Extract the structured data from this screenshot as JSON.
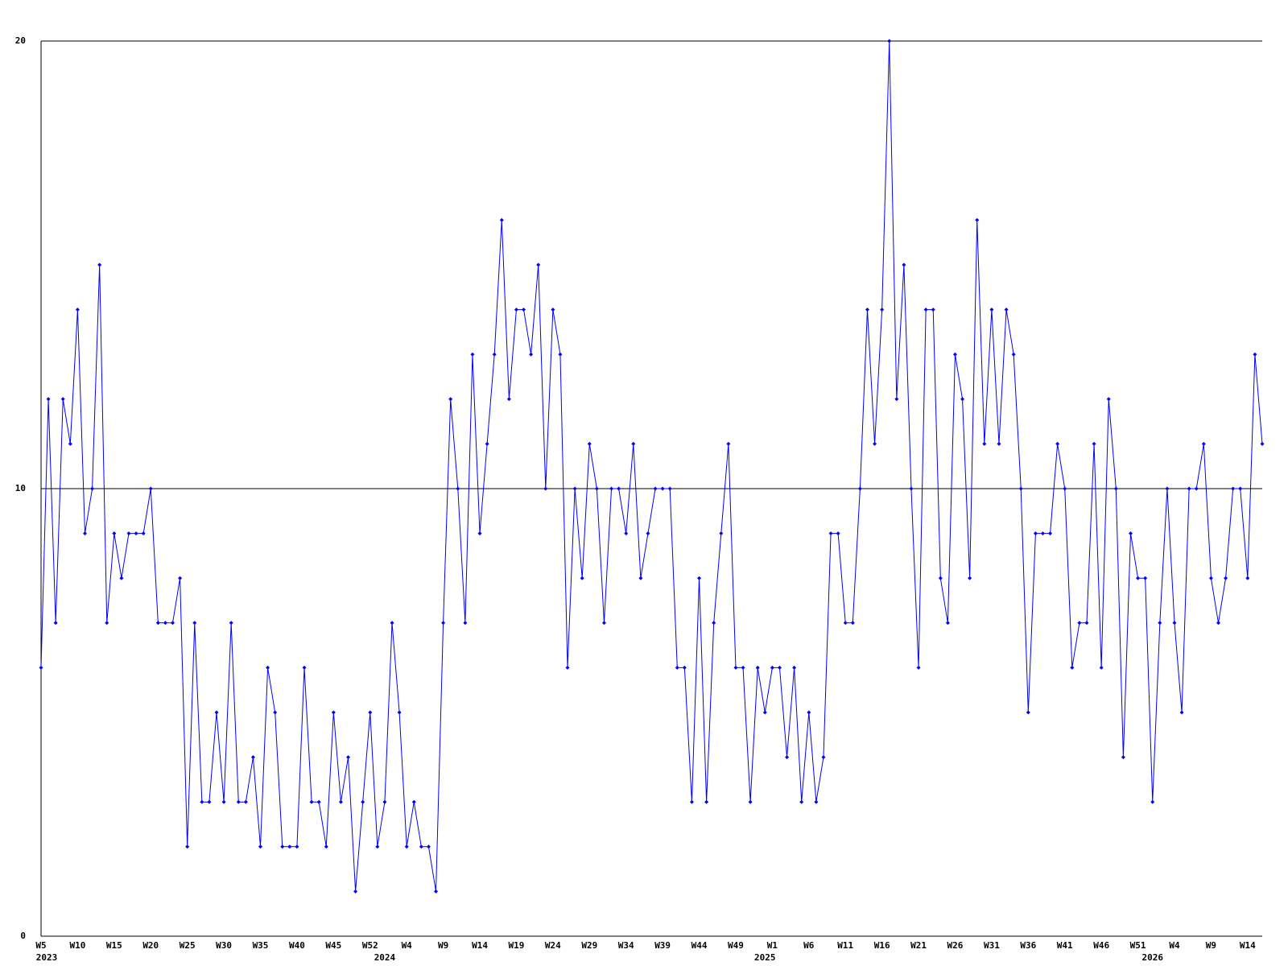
{
  "chart_data": {
    "type": "line",
    "categories": [
      "W5",
      null,
      null,
      null,
      null,
      "W10",
      null,
      null,
      null,
      null,
      "W15",
      null,
      null,
      null,
      null,
      "W20",
      null,
      null,
      null,
      null,
      "W25",
      null,
      null,
      null,
      null,
      "W30",
      null,
      null,
      null,
      null,
      "W35",
      null,
      null,
      null,
      null,
      "W40",
      null,
      null,
      null,
      null,
      "W45",
      null,
      null,
      null,
      null,
      "W52",
      null,
      null,
      null,
      null,
      "W4",
      null,
      null,
      null,
      null,
      "W9",
      null,
      null,
      null,
      null,
      "W14",
      null,
      null,
      null,
      null,
      "W19",
      null,
      null,
      null,
      null,
      "W24",
      null,
      null,
      null,
      null,
      "W29",
      null,
      null,
      null,
      null,
      "W34",
      null,
      null,
      null,
      null,
      "W39",
      null,
      null,
      null,
      null,
      "W44",
      null,
      null,
      null,
      null,
      "W49",
      null,
      null,
      null,
      null,
      "W1",
      null,
      null,
      null,
      null,
      "W6",
      null,
      null,
      null,
      null,
      "W11",
      null,
      null,
      null,
      null,
      "W16",
      null,
      null,
      null,
      null,
      "W21",
      null,
      null,
      null,
      null,
      "W26",
      null,
      null,
      null,
      null,
      "W31",
      null,
      null,
      null,
      null,
      "W36",
      null,
      null,
      null,
      null,
      "W41",
      null,
      null,
      null,
      null,
      "W46",
      null,
      null,
      null,
      null,
      "W51",
      null,
      null,
      null,
      null,
      "W4",
      null,
      null,
      null,
      null,
      "W9",
      null,
      null,
      null,
      null,
      "W14",
      null,
      null
    ],
    "category_years": [
      "2023",
      null,
      null,
      null,
      null,
      null,
      null,
      null,
      null,
      null,
      null,
      null,
      null,
      null,
      null,
      null,
      null,
      null,
      null,
      null,
      null,
      null,
      null,
      null,
      null,
      null,
      null,
      null,
      null,
      null,
      null,
      null,
      null,
      null,
      null,
      null,
      null,
      null,
      null,
      null,
      null,
      null,
      null,
      null,
      null,
      null,
      null,
      "2024",
      null,
      null,
      null,
      null,
      null,
      null,
      null,
      null,
      null,
      null,
      null,
      null,
      null,
      null,
      null,
      null,
      null,
      null,
      null,
      null,
      null,
      null,
      null,
      null,
      null,
      null,
      null,
      null,
      null,
      null,
      null,
      null,
      null,
      null,
      null,
      null,
      null,
      null,
      null,
      null,
      null,
      null,
      null,
      null,
      null,
      null,
      null,
      null,
      null,
      null,
      null,
      "2025",
      null,
      null,
      null,
      null,
      null,
      null,
      null,
      null,
      null,
      null,
      null,
      null,
      null,
      null,
      null,
      null,
      null,
      null,
      null,
      null,
      null,
      null,
      null,
      null,
      null,
      null,
      null,
      null,
      null,
      null,
      null,
      null,
      null,
      null,
      null,
      null,
      null,
      null,
      null,
      null,
      null,
      null,
      null,
      null,
      null,
      null,
      null,
      null,
      null,
      null,
      null,
      null,
      "2026",
      null,
      null,
      null,
      null,
      null,
      null,
      null,
      null,
      null,
      null,
      null,
      null,
      null,
      null,
      null
    ],
    "series": [
      {
        "color": "#0000ff",
        "values": [
          6,
          12,
          7,
          12,
          11,
          14,
          9,
          10,
          15,
          7,
          9,
          8,
          9,
          9,
          9,
          10,
          7,
          7,
          7,
          8,
          2,
          7,
          3,
          3,
          5,
          3,
          7,
          3,
          3,
          4,
          2,
          6,
          5,
          2,
          2,
          2,
          6,
          3,
          3,
          2,
          5,
          3,
          4,
          1,
          3,
          5,
          2,
          3,
          7,
          5,
          2,
          3,
          2,
          2,
          1,
          7,
          12,
          10,
          7,
          13,
          9,
          11,
          13,
          16,
          12,
          14,
          14,
          13,
          15,
          10,
          14,
          13,
          6,
          10,
          8,
          11,
          10,
          7,
          10,
          10,
          9,
          11,
          8,
          9,
          10,
          10,
          10,
          6,
          6,
          3,
          8,
          3,
          7,
          9,
          11,
          6,
          6,
          3,
          6,
          5,
          6,
          6,
          4,
          6,
          3,
          5,
          3,
          4,
          9,
          9,
          7,
          7,
          10,
          14,
          11,
          14,
          20,
          12,
          15,
          10,
          6,
          14,
          14,
          8,
          7,
          13,
          12,
          8,
          16,
          11,
          14,
          11,
          14,
          13,
          10,
          5,
          9,
          9,
          9,
          11,
          10,
          6,
          7,
          7,
          11,
          6,
          12,
          10,
          4,
          9,
          8,
          8,
          3,
          7,
          10,
          7,
          5,
          10,
          10,
          11,
          8,
          7,
          8,
          10,
          10,
          8,
          13,
          11
        ]
      }
    ],
    "ylim": [
      0,
      20
    ],
    "yticks": [
      0,
      10,
      20
    ],
    "grid": true
  }
}
